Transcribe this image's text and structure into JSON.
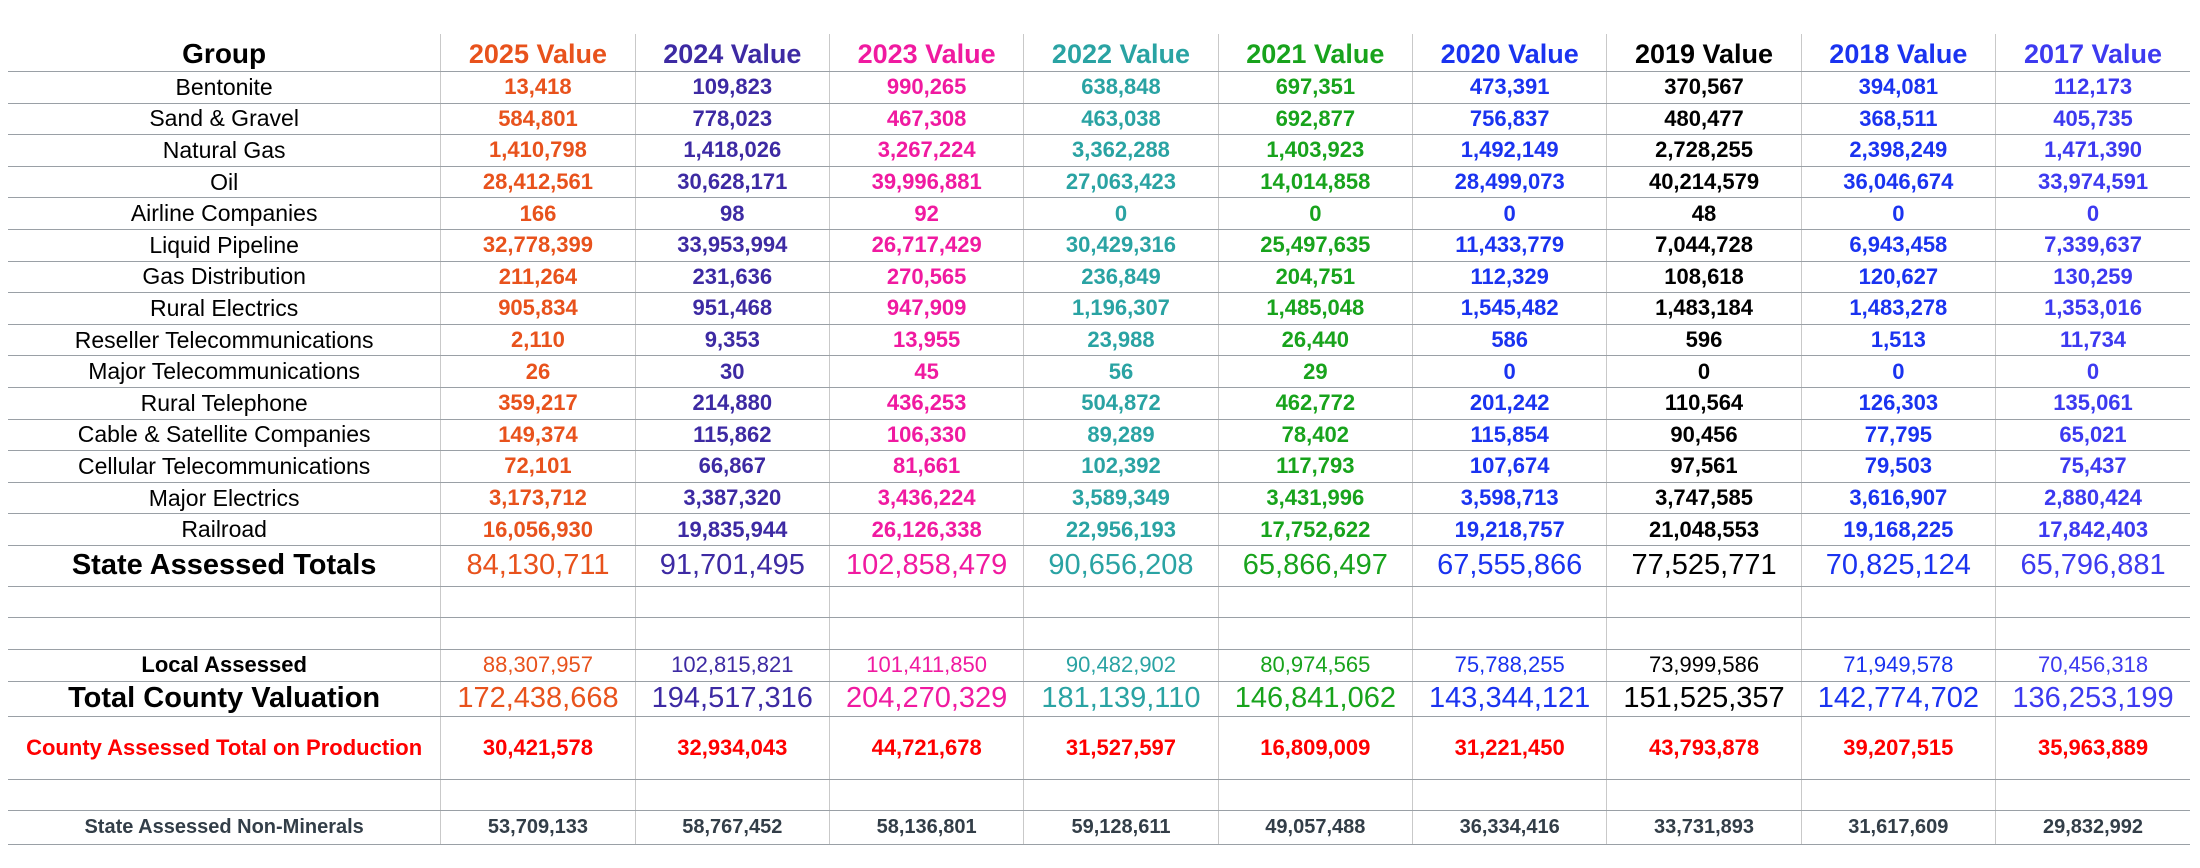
{
  "header": {
    "group_label": "Group"
  },
  "columns": [
    {
      "label": "2025 Value",
      "color": "#e8521c"
    },
    {
      "label": "2024 Value",
      "color": "#3d2aa3"
    },
    {
      "label": "2023 Value",
      "color": "#f01aa0"
    },
    {
      "label": "2022 Value",
      "color": "#2aa3a3"
    },
    {
      "label": "2021 Value",
      "color": "#18a31c"
    },
    {
      "label": "2020 Value",
      "color": "#1a33f0"
    },
    {
      "label": "2019 Value",
      "color": "#000000"
    },
    {
      "label": "2018 Value",
      "color": "#1a33f0"
    },
    {
      "label": "2017 Value",
      "color": "#3d3af0"
    }
  ],
  "rows": [
    {
      "group": "Bentonite",
      "values": [
        "13,418",
        "109,823",
        "990,265",
        "638,848",
        "697,351",
        "473,391",
        "370,567",
        "394,081",
        "112,173"
      ]
    },
    {
      "group": "Sand & Gravel",
      "values": [
        "584,801",
        "778,023",
        "467,308",
        "463,038",
        "692,877",
        "756,837",
        "480,477",
        "368,511",
        "405,735"
      ]
    },
    {
      "group": "Natural Gas",
      "values": [
        "1,410,798",
        "1,418,026",
        "3,267,224",
        "3,362,288",
        "1,403,923",
        "1,492,149",
        "2,728,255",
        "2,398,249",
        "1,471,390"
      ]
    },
    {
      "group": "Oil",
      "values": [
        "28,412,561",
        "30,628,171",
        "39,996,881",
        "27,063,423",
        "14,014,858",
        "28,499,073",
        "40,214,579",
        "36,046,674",
        "33,974,591"
      ]
    },
    {
      "group": "Airline Companies",
      "values": [
        "166",
        "98",
        "92",
        "0",
        "0",
        "0",
        "48",
        "0",
        "0"
      ]
    },
    {
      "group": "Liquid Pipeline",
      "values": [
        "32,778,399",
        "33,953,994",
        "26,717,429",
        "30,429,316",
        "25,497,635",
        "11,433,779",
        "7,044,728",
        "6,943,458",
        "7,339,637"
      ]
    },
    {
      "group": "Gas Distribution",
      "values": [
        "211,264",
        "231,636",
        "270,565",
        "236,849",
        "204,751",
        "112,329",
        "108,618",
        "120,627",
        "130,259"
      ]
    },
    {
      "group": "Rural Electrics",
      "values": [
        "905,834",
        "951,468",
        "947,909",
        "1,196,307",
        "1,485,048",
        "1,545,482",
        "1,483,184",
        "1,483,278",
        "1,353,016"
      ]
    },
    {
      "group": "Reseller Telecommunications",
      "values": [
        "2,110",
        "9,353",
        "13,955",
        "23,988",
        "26,440",
        "586",
        "596",
        "1,513",
        "11,734"
      ]
    },
    {
      "group": "Major Telecommunications",
      "values": [
        "26",
        "30",
        "45",
        "56",
        "29",
        "0",
        "0",
        "0",
        "0"
      ]
    },
    {
      "group": "Rural Telephone",
      "values": [
        "359,217",
        "214,880",
        "436,253",
        "504,872",
        "462,772",
        "201,242",
        "110,564",
        "126,303",
        "135,061"
      ]
    },
    {
      "group": "Cable & Satellite Companies",
      "values": [
        "149,374",
        "115,862",
        "106,330",
        "89,289",
        "78,402",
        "115,854",
        "90,456",
        "77,795",
        "65,021"
      ]
    },
    {
      "group": "Cellular Telecommunications",
      "values": [
        "72,101",
        "66,867",
        "81,661",
        "102,392",
        "117,793",
        "107,674",
        "97,561",
        "79,503",
        "75,437"
      ]
    },
    {
      "group": "Major Electrics",
      "values": [
        "3,173,712",
        "3,387,320",
        "3,436,224",
        "3,589,349",
        "3,431,996",
        "3,598,713",
        "3,747,585",
        "3,616,907",
        "2,880,424"
      ]
    },
    {
      "group": "Railroad",
      "values": [
        "16,056,930",
        "19,835,944",
        "26,126,338",
        "22,956,193",
        "17,752,622",
        "19,218,757",
        "21,048,553",
        "19,168,225",
        "17,842,403"
      ]
    }
  ],
  "state_assessed_totals": {
    "label": "State Assessed Totals",
    "values": [
      "84,130,711",
      "91,701,495",
      "102,858,479",
      "90,656,208",
      "65,866,497",
      "67,555,866",
      "77,525,771",
      "70,825,124",
      "65,796,881"
    ]
  },
  "local_assessed": {
    "label": "Local Assessed",
    "values": [
      "88,307,957",
      "102,815,821",
      "101,411,850",
      "90,482,902",
      "80,974,565",
      "75,788,255",
      "73,999,586",
      "71,949,578",
      "70,456,318"
    ]
  },
  "total_county_valuation": {
    "label": "Total County Valuation",
    "values": [
      "172,438,668",
      "194,517,316",
      "204,270,329",
      "181,139,110",
      "146,841,062",
      "143,344,121",
      "151,525,357",
      "142,774,702",
      "136,253,199"
    ]
  },
  "county_assessed_production": {
    "label": "County Assessed Total on Production",
    "color": "#ff0000",
    "values": [
      "30,421,578",
      "32,934,043",
      "44,721,678",
      "31,527,597",
      "16,809,009",
      "31,221,450",
      "43,793,878",
      "39,207,515",
      "35,963,889"
    ]
  },
  "state_assessed_non_minerals": {
    "label": "State Assessed Non-Minerals",
    "color": "#333e48",
    "values": [
      "53,709,133",
      "58,767,452",
      "58,136,801",
      "59,128,611",
      "49,057,488",
      "36,334,416",
      "33,731,893",
      "31,617,609",
      "29,832,992"
    ]
  }
}
